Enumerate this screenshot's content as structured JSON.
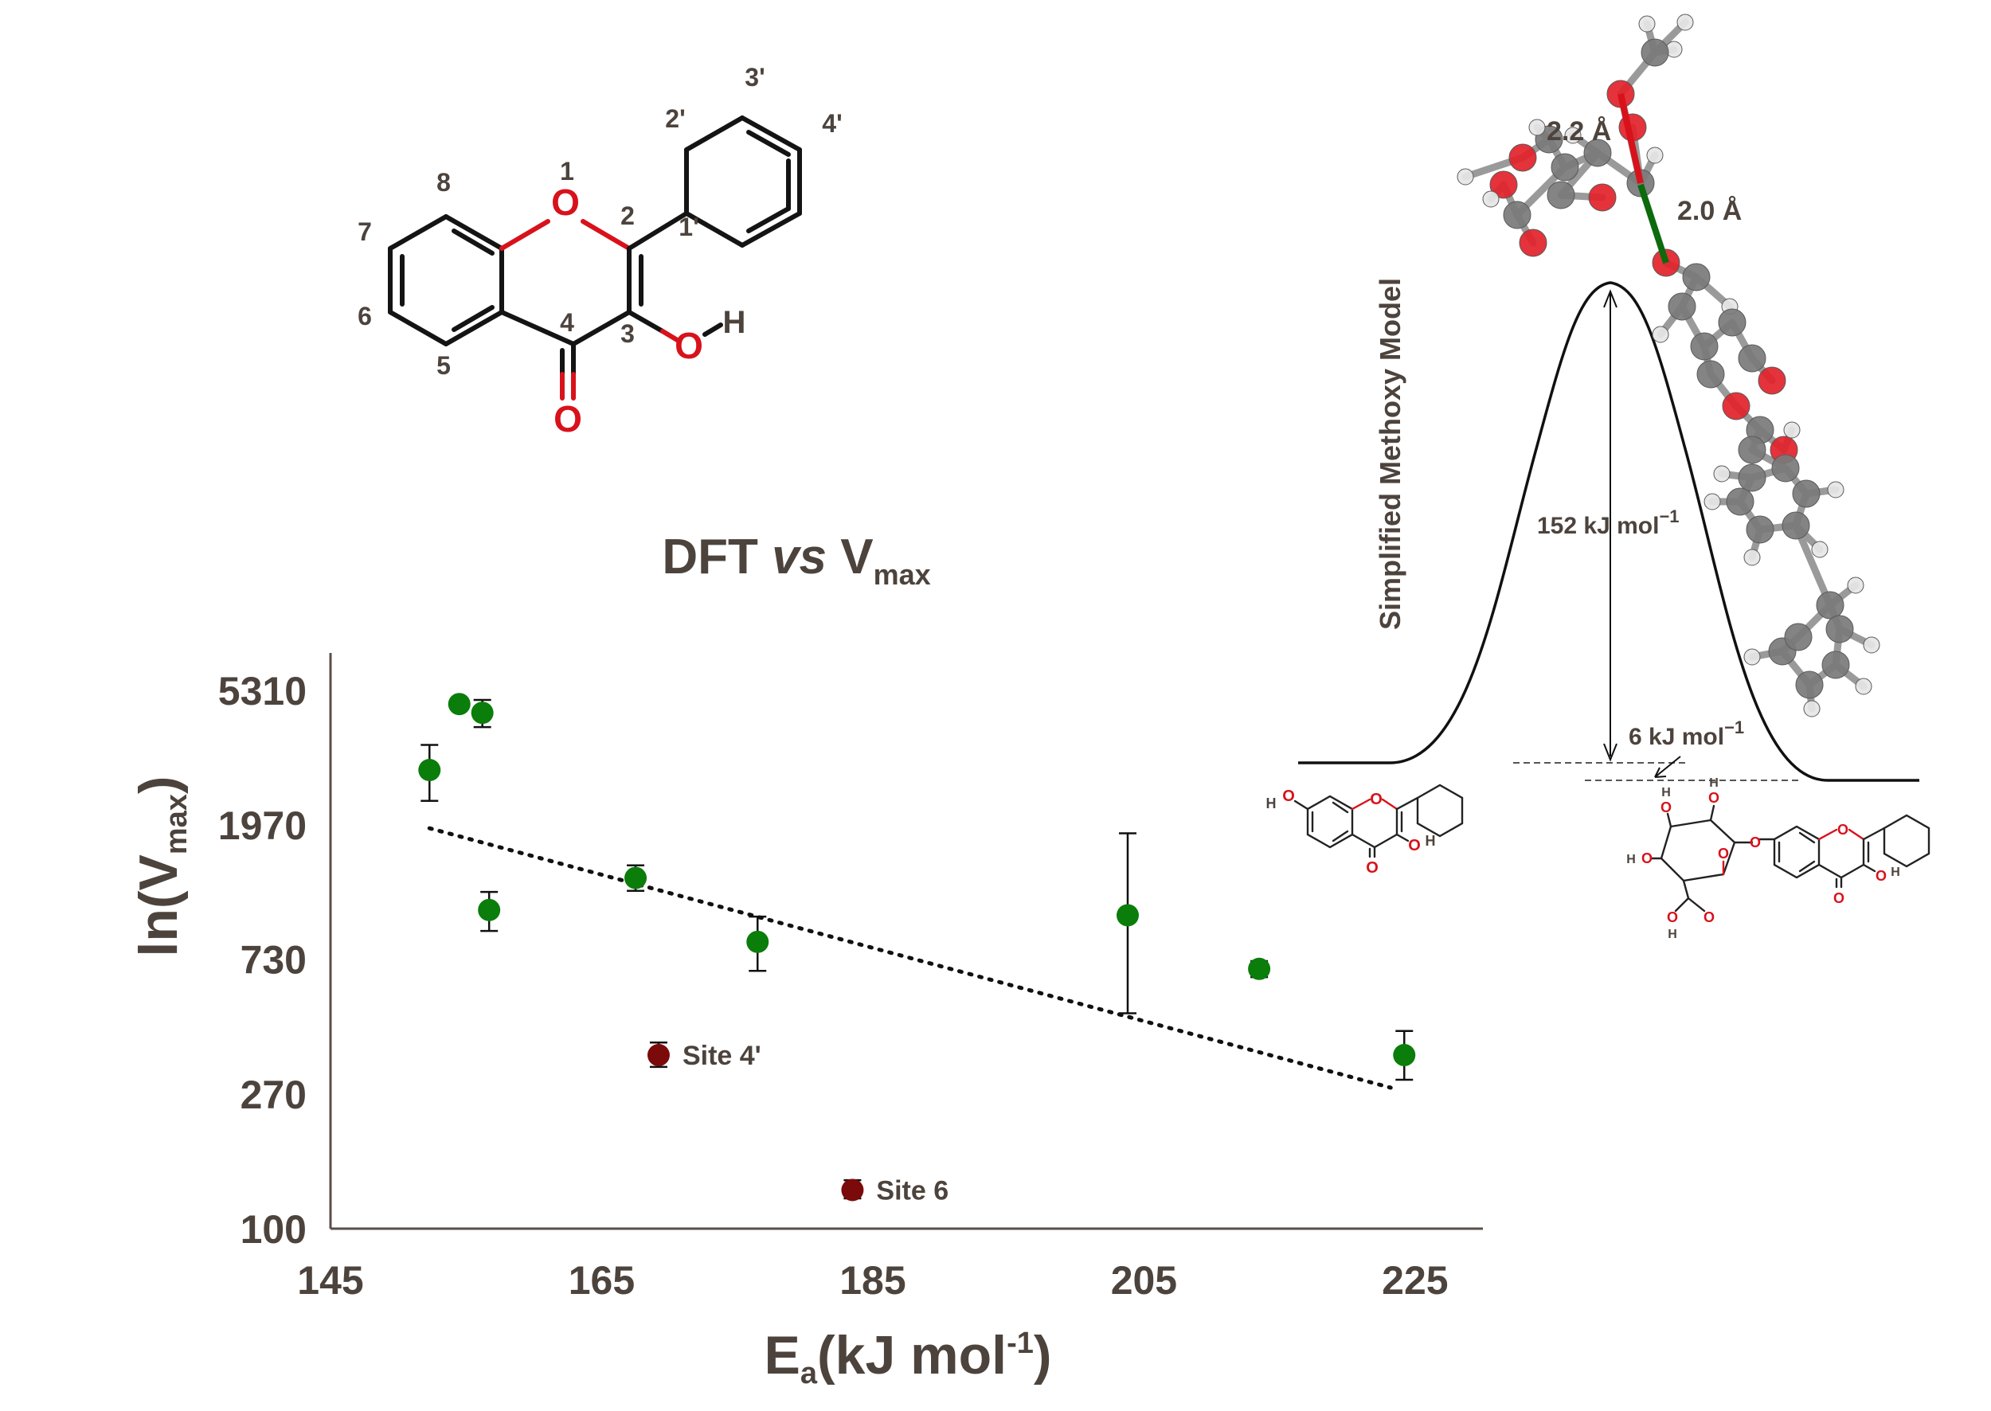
{
  "chart_data": {
    "type": "scatter",
    "title": "DFT vs V",
    "title_italic_part": "vs",
    "title_subscript": "max",
    "xlabel": "E",
    "xlabel_subscript": "a",
    "xlabel_unit": "(kJ mol",
    "xlabel_unit_superscript": "-1",
    "xlabel_unit_close": ")",
    "ylabel": "ln(V",
    "ylabel_subscript": "max",
    "ylabel_close": ")",
    "xlim": [
      145,
      230
    ],
    "x_ticks": [
      145,
      165,
      185,
      205,
      225
    ],
    "y_scale": "log",
    "ylim": [
      100,
      7000
    ],
    "y_ticks": [
      100,
      270,
      730,
      1970,
      5310
    ],
    "series": [
      {
        "color": "#0a7d0a",
        "points": [
          {
            "x": 152.3,
            "y": 2950,
            "err_lo": 600,
            "err_hi": 600
          },
          {
            "x": 154.5,
            "y": 4800,
            "err_lo": 0,
            "err_hi": 0
          },
          {
            "x": 156.2,
            "y": 4500,
            "err_lo": 450,
            "err_hi": 450
          },
          {
            "x": 156.7,
            "y": 1050,
            "err_lo": 150,
            "err_hi": 150
          },
          {
            "x": 167.5,
            "y": 1330,
            "err_lo": 120,
            "err_hi": 130
          },
          {
            "x": 176.5,
            "y": 830,
            "err_lo": 160,
            "err_hi": 170
          },
          {
            "x": 203.8,
            "y": 1010,
            "err_lo": 520,
            "err_hi": 840
          },
          {
            "x": 213.5,
            "y": 680,
            "err_lo": 40,
            "err_hi": 40
          },
          {
            "x": 224.2,
            "y": 360,
            "err_lo": 60,
            "err_hi": 70
          }
        ]
      },
      {
        "color": "#7b0a0a",
        "points": [
          {
            "x": 169.2,
            "y": 360,
            "err_lo": 30,
            "err_hi": 35,
            "label": "Site 4'"
          },
          {
            "x": 183.5,
            "y": 133,
            "err_lo": 8,
            "err_hi": 10,
            "label": "Site 6"
          }
        ]
      }
    ],
    "trendline": {
      "style": "dotted",
      "x": [
        152.3,
        223.2
      ],
      "y": [
        1920,
        283
      ]
    }
  },
  "molecule": {
    "ring_atom_labels": [
      "8",
      "1",
      "2",
      "7",
      "6",
      "4",
      "3",
      "5",
      "1'",
      "2'",
      "3'",
      "4'"
    ],
    "heteroatoms": [
      "O",
      "O",
      "O"
    ],
    "hydroxyl_h": "H"
  },
  "energy_profile": {
    "title": "Simplified Methoxy Model",
    "barrier_label": "152 kJ mol",
    "barrier_superscript": "−1",
    "reaction_energy_label": "6 kJ mol",
    "reaction_energy_superscript": "−1",
    "bond_lengths": [
      "2.2 Å",
      "2.0 Å"
    ],
    "small_atom_labels": {
      "O": "O",
      "H": "H"
    },
    "colors": {
      "carbon": "#7a7a7a",
      "oxygen": "#e2222a",
      "hydrogen": "#e6e6e6",
      "forming_bond": "#0c6b0c",
      "breaking_bond": "#d8121b"
    }
  }
}
